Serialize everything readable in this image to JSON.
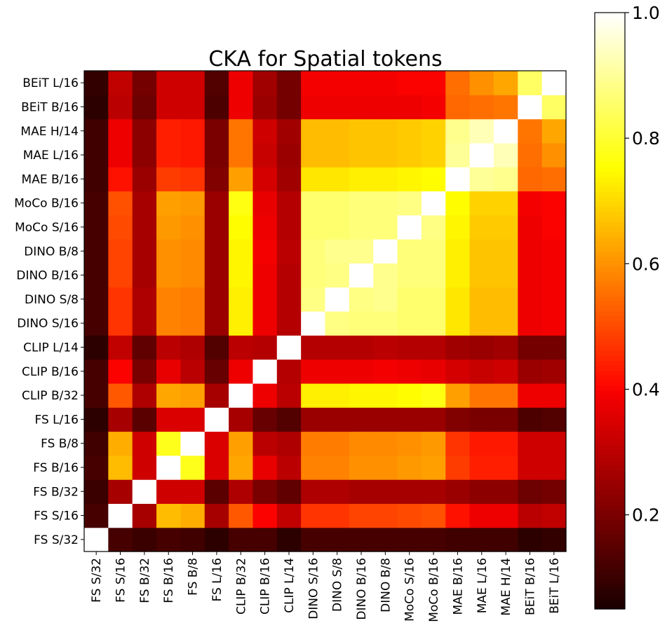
{
  "chart_data": {
    "type": "heatmap",
    "title": "CKA for Spatial tokens",
    "labels": [
      "FS S/32",
      "FS S/16",
      "FS B/32",
      "FS B/16",
      "FS B/8",
      "FS L/16",
      "CLIP B/32",
      "CLIP B/16",
      "CLIP L/14",
      "DINO S/16",
      "DINO S/8",
      "DINO B/16",
      "DINO B/8",
      "MoCo S/16",
      "MoCo B/16",
      "MAE B/16",
      "MAE L/16",
      "MAE H/14",
      "BEiT B/16",
      "BEiT L/16"
    ],
    "x_order": "left-to-right",
    "y_order": "bottom-to-top",
    "values": [
      [
        1.0,
        0.12,
        0.1,
        0.12,
        0.11,
        0.08,
        0.12,
        0.12,
        0.08,
        0.12,
        0.12,
        0.12,
        0.12,
        0.12,
        0.12,
        0.11,
        0.11,
        0.11,
        0.08,
        0.09
      ],
      [
        0.12,
        1.0,
        0.27,
        0.66,
        0.64,
        0.27,
        0.52,
        0.4,
        0.31,
        0.47,
        0.47,
        0.49,
        0.49,
        0.5,
        0.51,
        0.42,
        0.38,
        0.38,
        0.3,
        0.31
      ],
      [
        0.1,
        0.27,
        1.0,
        0.33,
        0.33,
        0.15,
        0.28,
        0.2,
        0.16,
        0.28,
        0.28,
        0.27,
        0.27,
        0.27,
        0.27,
        0.25,
        0.23,
        0.23,
        0.18,
        0.19
      ],
      [
        0.12,
        0.66,
        0.33,
        1.0,
        0.78,
        0.35,
        0.63,
        0.37,
        0.3,
        0.58,
        0.58,
        0.6,
        0.6,
        0.61,
        0.62,
        0.48,
        0.44,
        0.44,
        0.33,
        0.33
      ],
      [
        0.11,
        0.64,
        0.33,
        0.78,
        1.0,
        0.35,
        0.62,
        0.3,
        0.28,
        0.57,
        0.57,
        0.59,
        0.59,
        0.6,
        0.61,
        0.47,
        0.43,
        0.43,
        0.33,
        0.33
      ],
      [
        0.08,
        0.27,
        0.15,
        0.35,
        0.35,
        1.0,
        0.27,
        0.17,
        0.14,
        0.25,
        0.25,
        0.25,
        0.25,
        0.25,
        0.25,
        0.21,
        0.2,
        0.2,
        0.13,
        0.14
      ],
      [
        0.12,
        0.52,
        0.28,
        0.63,
        0.62,
        0.27,
        1.0,
        0.38,
        0.3,
        0.73,
        0.73,
        0.74,
        0.74,
        0.75,
        0.77,
        0.62,
        0.56,
        0.56,
        0.38,
        0.38
      ],
      [
        0.12,
        0.4,
        0.2,
        0.37,
        0.3,
        0.17,
        0.38,
        1.0,
        0.29,
        0.38,
        0.38,
        0.38,
        0.39,
        0.38,
        0.37,
        0.34,
        0.32,
        0.33,
        0.25,
        0.26
      ],
      [
        0.08,
        0.31,
        0.16,
        0.3,
        0.28,
        0.14,
        0.3,
        0.29,
        1.0,
        0.29,
        0.29,
        0.29,
        0.3,
        0.29,
        0.29,
        0.26,
        0.25,
        0.26,
        0.19,
        0.19
      ],
      [
        0.12,
        0.47,
        0.28,
        0.58,
        0.57,
        0.25,
        0.73,
        0.38,
        0.29,
        1.0,
        0.88,
        0.87,
        0.87,
        0.86,
        0.86,
        0.72,
        0.66,
        0.66,
        0.38,
        0.39
      ],
      [
        0.12,
        0.47,
        0.28,
        0.58,
        0.57,
        0.25,
        0.73,
        0.38,
        0.29,
        0.88,
        1.0,
        0.88,
        0.89,
        0.86,
        0.86,
        0.72,
        0.66,
        0.66,
        0.38,
        0.39
      ],
      [
        0.12,
        0.49,
        0.27,
        0.6,
        0.59,
        0.25,
        0.74,
        0.38,
        0.29,
        0.87,
        0.88,
        1.0,
        0.89,
        0.87,
        0.87,
        0.73,
        0.67,
        0.67,
        0.38,
        0.39
      ],
      [
        0.12,
        0.49,
        0.27,
        0.6,
        0.59,
        0.25,
        0.74,
        0.39,
        0.3,
        0.87,
        0.89,
        0.89,
        1.0,
        0.87,
        0.87,
        0.73,
        0.67,
        0.67,
        0.38,
        0.39
      ],
      [
        0.12,
        0.5,
        0.27,
        0.61,
        0.6,
        0.25,
        0.75,
        0.38,
        0.29,
        0.86,
        0.86,
        0.87,
        0.87,
        1.0,
        0.88,
        0.74,
        0.68,
        0.68,
        0.38,
        0.4
      ],
      [
        0.12,
        0.51,
        0.27,
        0.62,
        0.61,
        0.25,
        0.77,
        0.37,
        0.29,
        0.86,
        0.86,
        0.87,
        0.87,
        0.88,
        1.0,
        0.75,
        0.69,
        0.69,
        0.39,
        0.4
      ],
      [
        0.11,
        0.42,
        0.25,
        0.48,
        0.47,
        0.21,
        0.62,
        0.34,
        0.26,
        0.72,
        0.72,
        0.73,
        0.73,
        0.74,
        0.75,
        1.0,
        0.9,
        0.89,
        0.54,
        0.55
      ],
      [
        0.11,
        0.38,
        0.23,
        0.44,
        0.43,
        0.2,
        0.56,
        0.32,
        0.25,
        0.66,
        0.66,
        0.67,
        0.67,
        0.68,
        0.69,
        0.9,
        1.0,
        0.93,
        0.55,
        0.6
      ],
      [
        0.11,
        0.38,
        0.23,
        0.44,
        0.43,
        0.2,
        0.56,
        0.33,
        0.26,
        0.66,
        0.66,
        0.67,
        0.67,
        0.68,
        0.69,
        0.89,
        0.93,
        1.0,
        0.56,
        0.63
      ],
      [
        0.08,
        0.3,
        0.18,
        0.33,
        0.33,
        0.13,
        0.38,
        0.25,
        0.19,
        0.38,
        0.38,
        0.38,
        0.38,
        0.38,
        0.39,
        0.54,
        0.55,
        0.56,
        1.0,
        0.85
      ],
      [
        0.09,
        0.31,
        0.19,
        0.33,
        0.33,
        0.14,
        0.38,
        0.26,
        0.19,
        0.39,
        0.39,
        0.39,
        0.39,
        0.4,
        0.4,
        0.55,
        0.6,
        0.63,
        0.85,
        1.0
      ]
    ],
    "colormap": "hot",
    "vmin": 0.05,
    "vmax": 1.0,
    "colorbar": {
      "ticks": [
        0.2,
        0.4,
        0.6,
        0.8,
        1.0
      ],
      "tick_labels": [
        "0.2",
        "0.4",
        "0.6",
        "0.8",
        "1.0"
      ],
      "placement": "right"
    }
  }
}
